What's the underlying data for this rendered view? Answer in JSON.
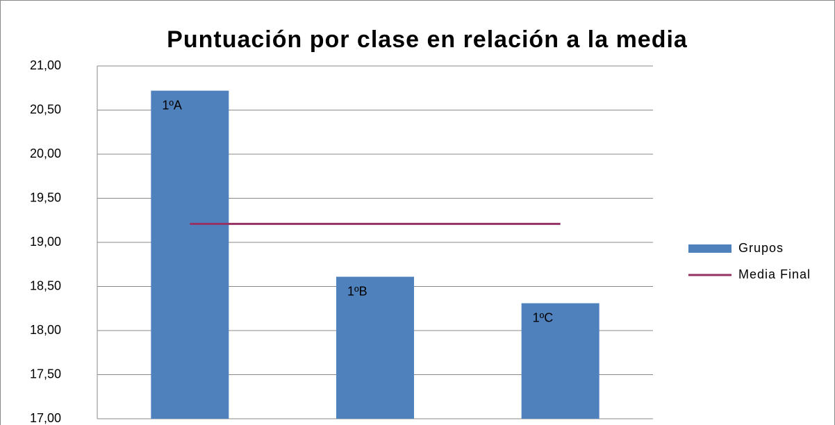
{
  "chart_data": {
    "type": "bar",
    "title": "Puntuación por clase  en relación a la media",
    "categories": [
      "1ºA",
      "1ºB",
      "1ºC"
    ],
    "series": [
      {
        "name": "Grupos",
        "type": "bar",
        "color": "#4f81bd",
        "values": [
          20.72,
          18.61,
          18.31
        ]
      },
      {
        "name": "Media Final",
        "type": "line",
        "color": "#953163",
        "values": [
          19.21,
          19.21,
          19.21
        ]
      }
    ],
    "ylim": [
      17,
      21
    ],
    "yticks": [
      {
        "value": 17,
        "label": "17,00"
      },
      {
        "value": 17.5,
        "label": "17,50"
      },
      {
        "value": 18,
        "label": "18,00"
      },
      {
        "value": 18.5,
        "label": "18,50"
      },
      {
        "value": 19,
        "label": "19,00"
      },
      {
        "value": 19.5,
        "label": "19,50"
      },
      {
        "value": 20,
        "label": "20,00"
      },
      {
        "value": 20.5,
        "label": "20,50"
      },
      {
        "value": 21,
        "label": "21,00"
      }
    ],
    "grid": true,
    "legend": "right"
  }
}
